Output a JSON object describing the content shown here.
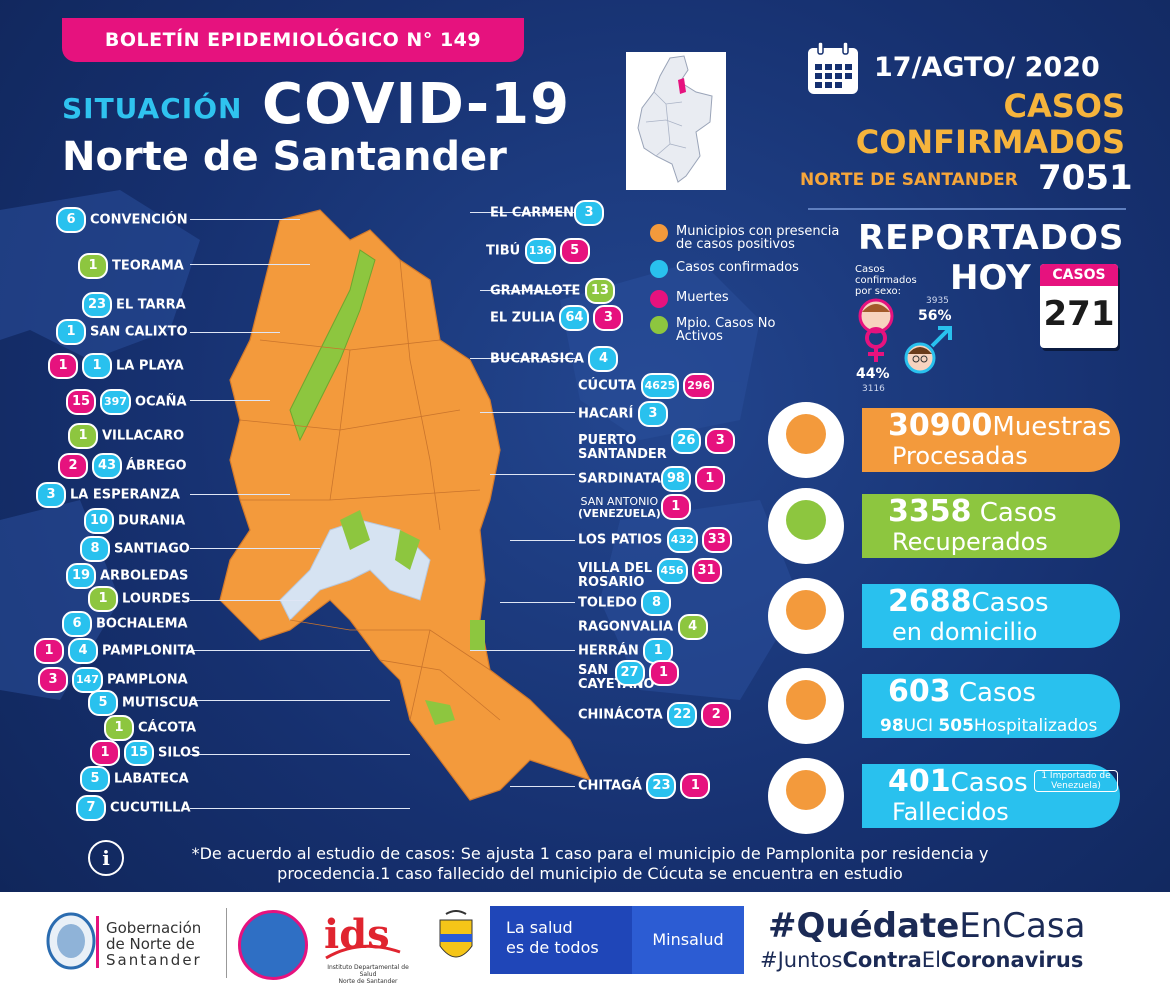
{
  "header": {
    "bulletin": "BOLETÍN EPIDEMIOLÓGICO N° 149",
    "situacion": "SITUACIÓN",
    "covid": "COVID-19",
    "region": "Norte de Santander"
  },
  "summary": {
    "date": "17/AGTO/ 2020",
    "casos_confirmados_1": "CASOS",
    "casos_confirmados_2": "CONFIRMADOS",
    "total_label": "NORTE DE SANTANDER",
    "total": "7051",
    "reportados": "REPORTADOS",
    "hoy": "HOY",
    "sexo_label": "Casos confirmados por sexo:",
    "female_pct": "44%",
    "female_num": "3116",
    "male_pct": "56%",
    "male_num": "3935",
    "casos_hoy_label": "CASOS",
    "casos_hoy": "271"
  },
  "stats": [
    {
      "num": "30900",
      "l1": "Muestras",
      "l2": "Procesadas",
      "color": "#f39a3c"
    },
    {
      "num": "3358",
      "l1": "Casos",
      "l2": "Recuperados",
      "color": "#8dc63f"
    },
    {
      "num": "2688",
      "l1": "Casos",
      "l2": "en domicilio",
      "color": "#29c1ee"
    },
    {
      "num": "603",
      "l1": "Casos",
      "l2a": "98",
      "l2b": "UCI",
      "l2c": "505",
      "l2d": "Hospitalizados",
      "color": "#29c1ee"
    },
    {
      "num": "401",
      "l1": "Casos",
      "l2": "Fallecidos",
      "extra": "1 Importado de Venezuela)",
      "color": "#29c1ee"
    }
  ],
  "legend": [
    {
      "label": "Municipios con presencia de casos positivos",
      "color": "#f39a3c"
    },
    {
      "label": "Casos confirmados",
      "color": "#29c1ee"
    },
    {
      "label": "Muertes",
      "color": "#e6127e"
    },
    {
      "label": "Mpio. Casos No Activos",
      "color": "#8dc63f"
    }
  ],
  "left_municipios": [
    {
      "name": "CONVENCIÓN",
      "conf": "6"
    },
    {
      "name": "TEORAMA",
      "inactive": "1"
    },
    {
      "name": "EL TARRA",
      "conf": "23"
    },
    {
      "name": "SAN CALIXTO",
      "conf": "1"
    },
    {
      "name": "LA PLAYA",
      "deaths": "1",
      "conf": "1"
    },
    {
      "name": "OCAÑA",
      "deaths": "15",
      "conf": "397"
    },
    {
      "name": "VILLACARO",
      "inactive": "1"
    },
    {
      "name": "ÁBREGO",
      "deaths": "2",
      "conf": "43"
    },
    {
      "name": "LA ESPERANZA",
      "conf": "3"
    },
    {
      "name": "DURANIA",
      "conf": "10"
    },
    {
      "name": "SANTIAGO",
      "conf": "8"
    },
    {
      "name": "ARBOLEDAS",
      "conf": "19"
    },
    {
      "name": "LOURDES",
      "inactive": "1"
    },
    {
      "name": "BOCHALEMA",
      "conf": "6"
    },
    {
      "name": "PAMPLONITA",
      "deaths": "1",
      "conf": "4"
    },
    {
      "name": "PAMPLONA",
      "deaths": "3",
      "conf": "147"
    },
    {
      "name": "MUTISCUA",
      "conf": "5"
    },
    {
      "name": "CÁCOTA",
      "inactive": "1"
    },
    {
      "name": "SILOS",
      "deaths": "1",
      "conf": "15"
    },
    {
      "name": "LABATECA",
      "conf": "5"
    },
    {
      "name": "CUCUTILLA",
      "conf": "7"
    }
  ],
  "right_municipios": [
    {
      "name": "EL CARMEN",
      "conf": "3"
    },
    {
      "name": "TIBÚ",
      "conf": "136",
      "deaths": "5"
    },
    {
      "name": "GRAMALOTE",
      "inactive": "13"
    },
    {
      "name": "EL ZULIA",
      "conf": "64",
      "deaths": "3"
    },
    {
      "name": "BUCARASICA",
      "conf": "4"
    },
    {
      "name": "CÚCUTA",
      "conf": "4625",
      "deaths": "296"
    },
    {
      "name": "HACARÍ",
      "conf": "3"
    },
    {
      "name": "PUERTO",
      "name2": "SANTANDER",
      "conf": "26",
      "deaths": "3"
    },
    {
      "name": "SARDINATA",
      "conf": "98",
      "deaths": "1"
    },
    {
      "name": "SAN ANTONIO",
      "name2": "(VENEZUELA)",
      "deaths": "1"
    },
    {
      "name": "LOS PATIOS",
      "conf": "432",
      "deaths": "33"
    },
    {
      "name": "VILLA DEL",
      "name2": "ROSARIO",
      "conf": "456",
      "deaths": "31"
    },
    {
      "name": "TOLEDO",
      "conf": "8"
    },
    {
      "name": "RAGONVALIA",
      "inactive": "4"
    },
    {
      "name": "HERRÁN",
      "conf": "1"
    },
    {
      "name": "SAN",
      "name2": "CAYETANO",
      "conf": "27",
      "deaths": "1"
    },
    {
      "name": "CHINÁCOTA",
      "conf": "22",
      "deaths": "2"
    },
    {
      "name": "CHITAGÁ",
      "conf": "23",
      "deaths": "1"
    }
  ],
  "footnote": "*De acuerdo al estudio de casos: Se ajusta 1 caso para el municipio de Pamplonita por residencia y procedencia.1 caso fallecido del municipio de Cúcuta se encuentra en estudio",
  "footer": {
    "gob_1": "Gobernación",
    "gob_2": "de Norte de",
    "gob_3": "Santander",
    "ids_1": "Instituto Departamental de Salud",
    "ids_2": "Norte de Santander",
    "salud_1": "La salud",
    "salud_2": "es de todos",
    "minsalud": "Minsalud",
    "quedate_a": "#Quédate",
    "quedate_b": "EnCasa",
    "juntos_a": "#Juntos",
    "juntos_b": "Contra",
    "juntos_c": "El",
    "juntos_d": "Coronavirus"
  }
}
